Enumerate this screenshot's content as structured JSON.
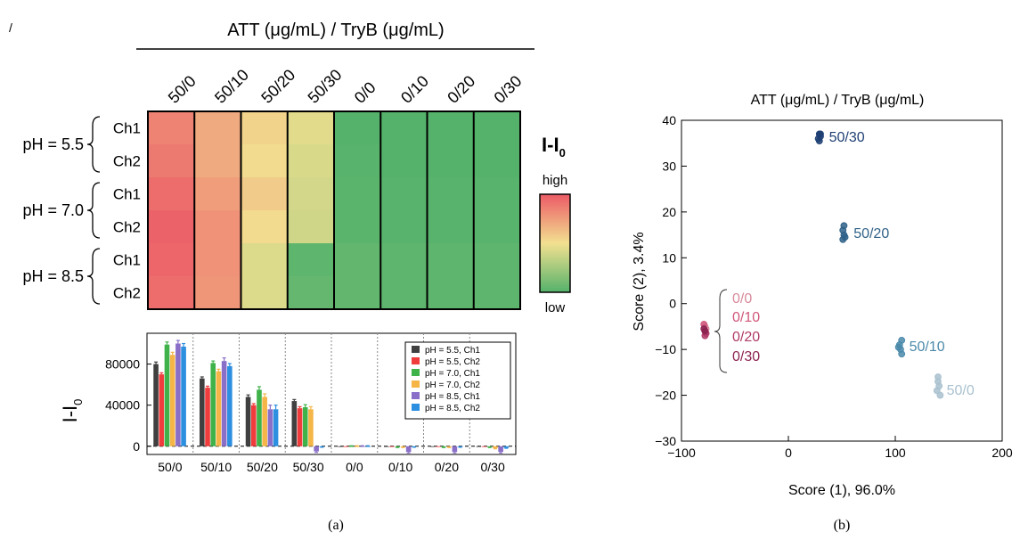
{
  "chart_data": [
    {
      "type": "heatmap",
      "panel": "(a)",
      "title": "ATT (μg/mL) / TryB (μg/mL)",
      "columns": [
        "50/0",
        "50/10",
        "50/20",
        "50/30",
        "0/0",
        "0/10",
        "0/20",
        "0/30"
      ],
      "row_groups": [
        {
          "label": "pH = 5.5",
          "rows": [
            "Ch1",
            "Ch2"
          ]
        },
        {
          "label": "pH = 7.0",
          "rows": [
            "Ch1",
            "Ch2"
          ]
        },
        {
          "label": "pH = 8.5",
          "rows": [
            "Ch1",
            "Ch2"
          ]
        }
      ],
      "values": [
        [
          0.85,
          0.7,
          0.55,
          0.45,
          0.0,
          0.0,
          0.0,
          0.0
        ],
        [
          0.88,
          0.7,
          0.52,
          0.42,
          0.01,
          0.0,
          0.0,
          0.0
        ],
        [
          0.93,
          0.75,
          0.58,
          0.4,
          0.02,
          0.01,
          0.01,
          0.01
        ],
        [
          0.97,
          0.79,
          0.52,
          0.39,
          0.02,
          0.01,
          0.01,
          0.01
        ],
        [
          0.95,
          0.79,
          0.43,
          0.03,
          0.04,
          0.03,
          0.03,
          0.03
        ],
        [
          0.93,
          0.78,
          0.43,
          0.05,
          0.04,
          0.03,
          0.03,
          0.03
        ]
      ],
      "colorbar": {
        "title": "I-I",
        "title_sub": "0",
        "high_label": "high",
        "low_label": "low",
        "colors": [
          "#55b26b",
          "#f2e090",
          "#ec5a66"
        ]
      }
    },
    {
      "type": "bar",
      "panel": "(a)",
      "categories": [
        "50/0",
        "50/10",
        "50/20",
        "50/30",
        "0/0",
        "0/10",
        "0/20",
        "0/30"
      ],
      "ylabel": "I-I",
      "ylabel_sub": "0",
      "ylim": [
        -8000,
        110000
      ],
      "yticks": [
        0,
        40000,
        80000
      ],
      "legend_position": "top-right",
      "series": [
        {
          "name": "pH = 5.5, Ch1",
          "color": "#404040",
          "values": [
            80000,
            66000,
            48000,
            44000,
            0,
            0,
            0,
            0
          ],
          "errors": [
            2000,
            1500,
            2000,
            1500,
            0,
            0,
            0,
            0
          ]
        },
        {
          "name": "pH = 5.5, Ch2",
          "color": "#f03c3c",
          "values": [
            70000,
            57000,
            40000,
            37000,
            0,
            -300,
            -300,
            -300
          ],
          "errors": [
            1500,
            1500,
            1500,
            1500,
            0,
            0,
            0,
            0
          ]
        },
        {
          "name": "pH = 7.0, Ch1",
          "color": "#3fb24a",
          "values": [
            99000,
            81000,
            55000,
            38000,
            0,
            -800,
            -800,
            -800
          ],
          "errors": [
            2500,
            2000,
            3000,
            2500,
            500,
            500,
            500,
            500
          ]
        },
        {
          "name": "pH = 7.0, Ch2",
          "color": "#f5b547",
          "values": [
            89000,
            73000,
            48000,
            36000,
            0,
            -800,
            -800,
            -2000
          ],
          "errors": [
            2500,
            2000,
            3000,
            2500,
            500,
            500,
            500,
            500
          ]
        },
        {
          "name": "pH = 8.5, Ch1",
          "color": "#8a6fc9",
          "values": [
            100000,
            83000,
            36000,
            -5000,
            0,
            -5500,
            -5500,
            -5500
          ],
          "errors": [
            3000,
            3000,
            4000,
            1000,
            500,
            1000,
            1000,
            1000
          ]
        },
        {
          "name": "pH = 8.5, Ch2",
          "color": "#2d8fe0",
          "values": [
            97000,
            78000,
            36000,
            -500,
            0,
            -500,
            -500,
            -1500
          ],
          "errors": [
            3000,
            2500,
            4000,
            500,
            500,
            500,
            500,
            500
          ]
        }
      ]
    },
    {
      "type": "scatter",
      "panel": "(b)",
      "title": "ATT (μg/mL) / TryB (μg/mL)",
      "xlabel": "Score (1), 96.0%",
      "ylabel": "Score (2), 3.4%",
      "xlim": [
        -100,
        200
      ],
      "ylim": [
        -30,
        40
      ],
      "xticks": [
        -100,
        0,
        100,
        200
      ],
      "yticks": [
        -30,
        -20,
        -10,
        0,
        10,
        20,
        30,
        40
      ],
      "groups": [
        {
          "name": "50/30",
          "color": "#1e3f73",
          "points": [
            [
              28,
              36
            ],
            [
              29,
              37
            ],
            [
              30,
              36.5
            ],
            [
              29,
              35.5
            ],
            [
              30,
              37
            ]
          ]
        },
        {
          "name": "50/20",
          "color": "#2f6288",
          "points": [
            [
              52,
              17
            ],
            [
              51,
              16
            ],
            [
              52,
              15
            ],
            [
              53,
              14.5
            ],
            [
              51,
              14
            ]
          ]
        },
        {
          "name": "50/10",
          "color": "#4b89aa",
          "points": [
            [
              104,
              -9
            ],
            [
              106,
              -8
            ],
            [
              105,
              -10
            ],
            [
              103,
              -9.5
            ],
            [
              106,
              -11
            ]
          ]
        },
        {
          "name": "50/0",
          "color": "#a9c1cf",
          "points": [
            [
              140,
              -16
            ],
            [
              141,
              -18
            ],
            [
              139,
              -19
            ],
            [
              142,
              -20
            ],
            [
              140,
              -17
            ]
          ]
        },
        {
          "name": "0/0",
          "color": "#d88a9c",
          "points": [
            [
              -78,
              -5
            ],
            [
              -77,
              -5.5
            ]
          ]
        },
        {
          "name": "0/10",
          "color": "#d0567b",
          "points": [
            [
              -78,
              -6
            ],
            [
              -79,
              -4.5
            ]
          ]
        },
        {
          "name": "0/20",
          "color": "#b03a67",
          "points": [
            [
              -77,
              -6.5
            ],
            [
              -78,
              -7
            ]
          ]
        },
        {
          "name": "0/30",
          "color": "#8c2350",
          "points": [
            [
              -79,
              -5.5
            ],
            [
              -78,
              -6
            ]
          ]
        }
      ]
    }
  ],
  "captions": {
    "a": "(a)",
    "b": "(b)"
  },
  "corner_mark": "/"
}
